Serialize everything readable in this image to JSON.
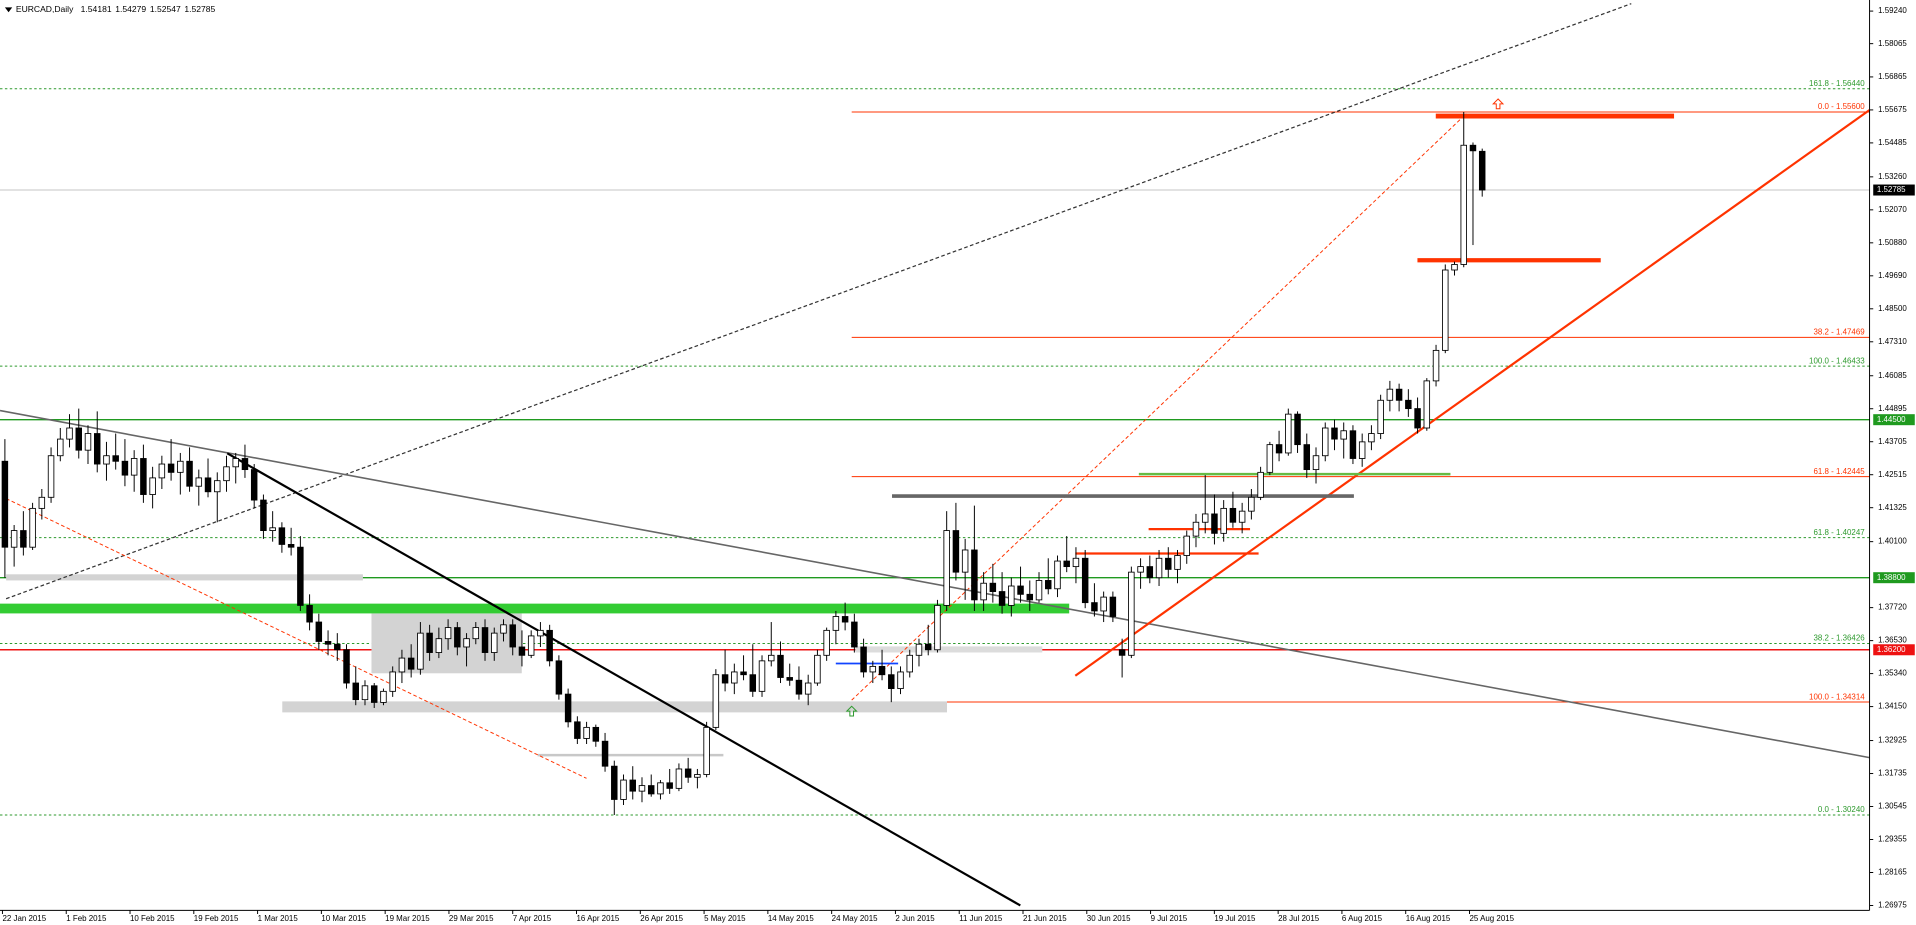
{
  "chart_data": {
    "type": "candlestick",
    "title": "EURCAD,Daily",
    "x_labels": [
      "22 Jan 2015",
      "1 Feb 2015",
      "10 Feb 2015",
      "19 Feb 2015",
      "1 Mar 2015",
      "10 Mar 2015",
      "19 Mar 2015",
      "29 Mar 2015",
      "7 Apr 2015",
      "16 Apr 2015",
      "26 Apr 2015",
      "5 May 2015",
      "14 May 2015",
      "24 May 2015",
      "2 Jun 2015",
      "11 Jun 2015",
      "21 Jun 2015",
      "30 Jun 2015",
      "9 Jul 2015",
      "19 Jul 2015",
      "28 Jul 2015",
      "6 Aug 2015",
      "16 Aug 2015",
      "25 Aug 2015"
    ],
    "candles": [
      [
        1.43,
        1.438,
        1.388,
        1.399
      ],
      [
        1.399,
        1.407,
        1.392,
        1.405
      ],
      [
        1.405,
        1.412,
        1.396,
        1.399
      ],
      [
        1.399,
        1.415,
        1.398,
        1.413
      ],
      [
        1.413,
        1.42,
        1.409,
        1.417
      ],
      [
        1.417,
        1.435,
        1.415,
        1.432
      ],
      [
        1.432,
        1.442,
        1.43,
        1.438
      ],
      [
        1.438,
        1.447,
        1.435,
        1.442
      ],
      [
        1.442,
        1.449,
        1.431,
        1.434
      ],
      [
        1.434,
        1.443,
        1.429,
        1.44
      ],
      [
        1.44,
        1.448,
        1.426,
        1.429
      ],
      [
        1.429,
        1.437,
        1.423,
        1.432
      ],
      [
        1.432,
        1.44,
        1.427,
        1.43
      ],
      [
        1.43,
        1.438,
        1.421,
        1.425
      ],
      [
        1.425,
        1.434,
        1.419,
        1.431
      ],
      [
        1.431,
        1.436,
        1.415,
        1.418
      ],
      [
        1.418,
        1.428,
        1.413,
        1.424
      ],
      [
        1.424,
        1.432,
        1.42,
        1.429
      ],
      [
        1.429,
        1.438,
        1.423,
        1.426
      ],
      [
        1.426,
        1.433,
        1.418,
        1.43
      ],
      [
        1.43,
        1.435,
        1.419,
        1.421
      ],
      [
        1.421,
        1.427,
        1.414,
        1.424
      ],
      [
        1.424,
        1.431,
        1.417,
        1.419
      ],
      [
        1.419,
        1.426,
        1.408,
        1.423
      ],
      [
        1.423,
        1.432,
        1.419,
        1.428
      ],
      [
        1.428,
        1.433,
        1.422,
        1.431
      ],
      [
        1.431,
        1.436,
        1.424,
        1.427
      ],
      [
        1.427,
        1.429,
        1.413,
        1.416
      ],
      [
        1.416,
        1.418,
        1.402,
        1.405
      ],
      [
        1.405,
        1.412,
        1.401,
        1.406
      ],
      [
        1.406,
        1.408,
        1.397,
        1.4
      ],
      [
        1.4,
        1.406,
        1.396,
        1.399
      ],
      [
        1.399,
        1.403,
        1.376,
        1.378
      ],
      [
        1.378,
        1.382,
        1.369,
        1.372
      ],
      [
        1.372,
        1.375,
        1.362,
        1.365
      ],
      [
        1.365,
        1.369,
        1.36,
        1.364
      ],
      [
        1.364,
        1.368,
        1.358,
        1.362
      ],
      [
        1.362,
        1.364,
        1.348,
        1.35
      ],
      [
        1.35,
        1.356,
        1.342,
        1.344
      ],
      [
        1.344,
        1.351,
        1.342,
        1.349
      ],
      [
        1.349,
        1.35,
        1.341,
        1.343
      ],
      [
        1.343,
        1.348,
        1.342,
        1.347
      ],
      [
        1.347,
        1.356,
        1.345,
        1.354
      ],
      [
        1.354,
        1.362,
        1.35,
        1.359
      ],
      [
        1.359,
        1.364,
        1.352,
        1.355
      ],
      [
        1.355,
        1.372,
        1.353,
        1.368
      ],
      [
        1.368,
        1.371,
        1.358,
        1.361
      ],
      [
        1.361,
        1.37,
        1.359,
        1.366
      ],
      [
        1.366,
        1.373,
        1.362,
        1.37
      ],
      [
        1.37,
        1.372,
        1.36,
        1.363
      ],
      [
        1.363,
        1.368,
        1.356,
        1.366
      ],
      [
        1.366,
        1.372,
        1.364,
        1.37
      ],
      [
        1.37,
        1.373,
        1.358,
        1.361
      ],
      [
        1.361,
        1.37,
        1.358,
        1.368
      ],
      [
        1.368,
        1.373,
        1.365,
        1.371
      ],
      [
        1.371,
        1.373,
        1.36,
        1.363
      ],
      [
        1.363,
        1.369,
        1.356,
        1.36
      ],
      [
        1.36,
        1.369,
        1.359,
        1.367
      ],
      [
        1.367,
        1.372,
        1.363,
        1.369
      ],
      [
        1.369,
        1.371,
        1.356,
        1.358
      ],
      [
        1.358,
        1.36,
        1.344,
        1.346
      ],
      [
        1.346,
        1.348,
        1.334,
        1.336
      ],
      [
        1.336,
        1.338,
        1.328,
        1.33
      ],
      [
        1.33,
        1.336,
        1.328,
        1.334
      ],
      [
        1.334,
        1.335,
        1.327,
        1.329
      ],
      [
        1.329,
        1.332,
        1.318,
        1.32
      ],
      [
        1.32,
        1.322,
        1.3024,
        1.308
      ],
      [
        1.308,
        1.317,
        1.306,
        1.315
      ],
      [
        1.315,
        1.32,
        1.308,
        1.311
      ],
      [
        1.311,
        1.316,
        1.307,
        1.313
      ],
      [
        1.313,
        1.317,
        1.309,
        1.31
      ],
      [
        1.31,
        1.315,
        1.308,
        1.314
      ],
      [
        1.314,
        1.319,
        1.31,
        1.312
      ],
      [
        1.312,
        1.321,
        1.311,
        1.319
      ],
      [
        1.319,
        1.323,
        1.314,
        1.316
      ],
      [
        1.316,
        1.319,
        1.312,
        1.317
      ],
      [
        1.317,
        1.336,
        1.316,
        1.334
      ],
      [
        1.334,
        1.355,
        1.333,
        1.353
      ],
      [
        1.353,
        1.362,
        1.347,
        1.35
      ],
      [
        1.35,
        1.357,
        1.346,
        1.354
      ],
      [
        1.354,
        1.36,
        1.351,
        1.353
      ],
      [
        1.353,
        1.364,
        1.345,
        1.347
      ],
      [
        1.347,
        1.36,
        1.345,
        1.358
      ],
      [
        1.358,
        1.372,
        1.356,
        1.36
      ],
      [
        1.36,
        1.365,
        1.35,
        1.352
      ],
      [
        1.352,
        1.357,
        1.349,
        1.351
      ],
      [
        1.351,
        1.356,
        1.344,
        1.346
      ],
      [
        1.346,
        1.353,
        1.342,
        1.35
      ],
      [
        1.35,
        1.362,
        1.349,
        1.36
      ],
      [
        1.36,
        1.37,
        1.358,
        1.369
      ],
      [
        1.369,
        1.376,
        1.364,
        1.374
      ],
      [
        1.374,
        1.379,
        1.369,
        1.372
      ],
      [
        1.372,
        1.375,
        1.361,
        1.363
      ],
      [
        1.363,
        1.366,
        1.352,
        1.354
      ],
      [
        1.354,
        1.358,
        1.35,
        1.356
      ],
      [
        1.356,
        1.362,
        1.351,
        1.353
      ],
      [
        1.353,
        1.356,
        1.3431,
        1.348
      ],
      [
        1.348,
        1.356,
        1.346,
        1.354
      ],
      [
        1.354,
        1.362,
        1.352,
        1.36
      ],
      [
        1.36,
        1.366,
        1.356,
        1.364
      ],
      [
        1.364,
        1.371,
        1.36,
        1.362
      ],
      [
        1.362,
        1.38,
        1.361,
        1.378
      ],
      [
        1.378,
        1.412,
        1.376,
        1.405
      ],
      [
        1.405,
        1.415,
        1.387,
        1.39
      ],
      [
        1.39,
        1.402,
        1.38,
        1.398
      ],
      [
        1.398,
        1.414,
        1.376,
        1.38
      ],
      [
        1.38,
        1.39,
        1.376,
        1.386
      ],
      [
        1.386,
        1.393,
        1.379,
        1.383
      ],
      [
        1.383,
        1.39,
        1.375,
        1.378
      ],
      [
        1.378,
        1.388,
        1.374,
        1.385
      ],
      [
        1.385,
        1.392,
        1.379,
        1.382
      ],
      [
        1.382,
        1.387,
        1.376,
        1.38
      ],
      [
        1.38,
        1.39,
        1.379,
        1.387
      ],
      [
        1.387,
        1.395,
        1.382,
        1.384
      ],
      [
        1.384,
        1.396,
        1.381,
        1.394
      ],
      [
        1.394,
        1.403,
        1.39,
        1.392
      ],
      [
        1.392,
        1.399,
        1.386,
        1.395
      ],
      [
        1.395,
        1.398,
        1.377,
        1.379
      ],
      [
        1.379,
        1.386,
        1.374,
        1.376
      ],
      [
        1.376,
        1.383,
        1.372,
        1.381
      ],
      [
        1.381,
        1.383,
        1.372,
        1.374
      ],
      [
        1.362,
        1.366,
        1.352,
        1.36
      ],
      [
        1.36,
        1.392,
        1.359,
        1.39
      ],
      [
        1.39,
        1.395,
        1.384,
        1.392
      ],
      [
        1.392,
        1.396,
        1.386,
        1.388
      ],
      [
        1.388,
        1.398,
        1.385,
        1.395
      ],
      [
        1.395,
        1.399,
        1.388,
        1.391
      ],
      [
        1.391,
        1.398,
        1.386,
        1.396
      ],
      [
        1.396,
        1.405,
        1.393,
        1.403
      ],
      [
        1.403,
        1.411,
        1.399,
        1.408
      ],
      [
        1.408,
        1.425,
        1.404,
        1.411
      ],
      [
        1.411,
        1.418,
        1.4,
        1.404
      ],
      [
        1.404,
        1.416,
        1.401,
        1.413
      ],
      [
        1.413,
        1.419,
        1.406,
        1.408
      ],
      [
        1.408,
        1.415,
        1.404,
        1.412
      ],
      [
        1.412,
        1.42,
        1.409,
        1.417
      ],
      [
        1.417,
        1.428,
        1.416,
        1.426
      ],
      [
        1.426,
        1.437,
        1.425,
        1.436
      ],
      [
        1.436,
        1.441,
        1.43,
        1.433
      ],
      [
        1.433,
        1.449,
        1.432,
        1.447
      ],
      [
        1.447,
        1.448,
        1.433,
        1.436
      ],
      [
        1.436,
        1.44,
        1.424,
        1.427
      ],
      [
        1.427,
        1.435,
        1.422,
        1.432
      ],
      [
        1.432,
        1.444,
        1.43,
        1.442
      ],
      [
        1.442,
        1.445,
        1.434,
        1.438
      ],
      [
        1.438,
        1.444,
        1.431,
        1.441
      ],
      [
        1.441,
        1.443,
        1.429,
        1.431
      ],
      [
        1.431,
        1.44,
        1.428,
        1.437
      ],
      [
        1.437,
        1.443,
        1.434,
        1.44
      ],
      [
        1.44,
        1.454,
        1.438,
        1.452
      ],
      [
        1.452,
        1.459,
        1.448,
        1.456
      ],
      [
        1.456,
        1.458,
        1.448,
        1.452
      ],
      [
        1.452,
        1.456,
        1.446,
        1.449
      ],
      [
        1.449,
        1.453,
        1.44,
        1.442
      ],
      [
        1.442,
        1.46,
        1.441,
        1.459
      ],
      [
        1.459,
        1.472,
        1.457,
        1.47
      ],
      [
        1.47,
        1.501,
        1.469,
        1.499
      ],
      [
        1.499,
        1.502,
        1.497,
        1.501
      ],
      [
        1.501,
        1.556,
        1.5,
        1.544
      ],
      [
        1.544,
        1.545,
        1.508,
        1.542
      ],
      [
        1.54181,
        1.54279,
        1.52547,
        1.52785
      ]
    ],
    "ylim": [
      1.268,
      1.5964
    ],
    "yticks": [
      {
        "value": 1.5924,
        "label": "1.59240"
      },
      1.58065,
      1.56865,
      1.55675,
      1.54485,
      {
        "value": 1.5326,
        "label": "1.53260"
      },
      {
        "value": 1.5207,
        "label": "1.52070"
      },
      {
        "value": 1.5088,
        "label": "1.50880"
      },
      {
        "value": 1.4969,
        "label": "1.49690"
      },
      {
        "value": 1.485,
        "label": "1.48500"
      },
      {
        "value": 1.4731,
        "label": "1.47310"
      },
      1.46085,
      1.44895,
      1.43705,
      1.42515,
      1.41325,
      {
        "value": 1.401,
        "label": "1.40100"
      },
      {
        "value": 1.3772,
        "label": "1.37720"
      },
      {
        "value": 1.3653,
        "label": "1.36530"
      },
      {
        "value": 1.3534,
        "label": "1.35340"
      },
      {
        "value": 1.3415,
        "label": "1.34150"
      },
      1.32925,
      1.31735,
      1.30545,
      1.29355,
      1.28165,
      1.26975
    ],
    "levels": [
      {
        "value": 1.52785,
        "label": "1.52785",
        "color": "#b0b0b0",
        "label_bg": "#000000"
      },
      {
        "value": 1.445,
        "label": "1.44500",
        "color": "#1f9a1f",
        "label_bg": "#1f9a1f"
      },
      {
        "value": 1.388,
        "label": "1.38800",
        "color": "#1f9a1f",
        "label_bg": "#1f9a1f"
      },
      {
        "value": 1.362,
        "label": "1.36200",
        "color": "#ee1111",
        "label_bg": "#ee1111"
      }
    ],
    "fib_levels": [
      {
        "value": 1.5644,
        "label": "161.8 - 1.56440",
        "color": "#2e9a2e",
        "style": "dotted"
      },
      {
        "value": 1.46433,
        "label": "100.0 - 1.46433",
        "color": "#2e9a2e",
        "style": "dotted"
      },
      {
        "value": 1.40247,
        "label": "61.8 - 1.40247",
        "color": "#2e9a2e",
        "style": "dotted"
      },
      {
        "value": 1.36426,
        "label": "38.2 - 1.36426",
        "color": "#2e9a2e",
        "style": "dotted"
      },
      {
        "value": 1.3024,
        "label": "0.0 - 1.30240",
        "color": "#2e9a2e",
        "style": "dotted"
      },
      {
        "value": 1.556,
        "label": "0.0 - 1.55600",
        "color": "#ff3300",
        "style": "solid"
      },
      {
        "value": 1.47469,
        "label": "38.2 - 1.47469",
        "color": "#ff3300",
        "style": "solid"
      },
      {
        "value": 1.42445,
        "label": "61.8 - 1.42445",
        "color": "#ff3300",
        "style": "solid"
      },
      {
        "value": 1.34314,
        "label": "100.0 - 1.34314",
        "color": "#ff3300",
        "style": "solid"
      }
    ]
  }
}
